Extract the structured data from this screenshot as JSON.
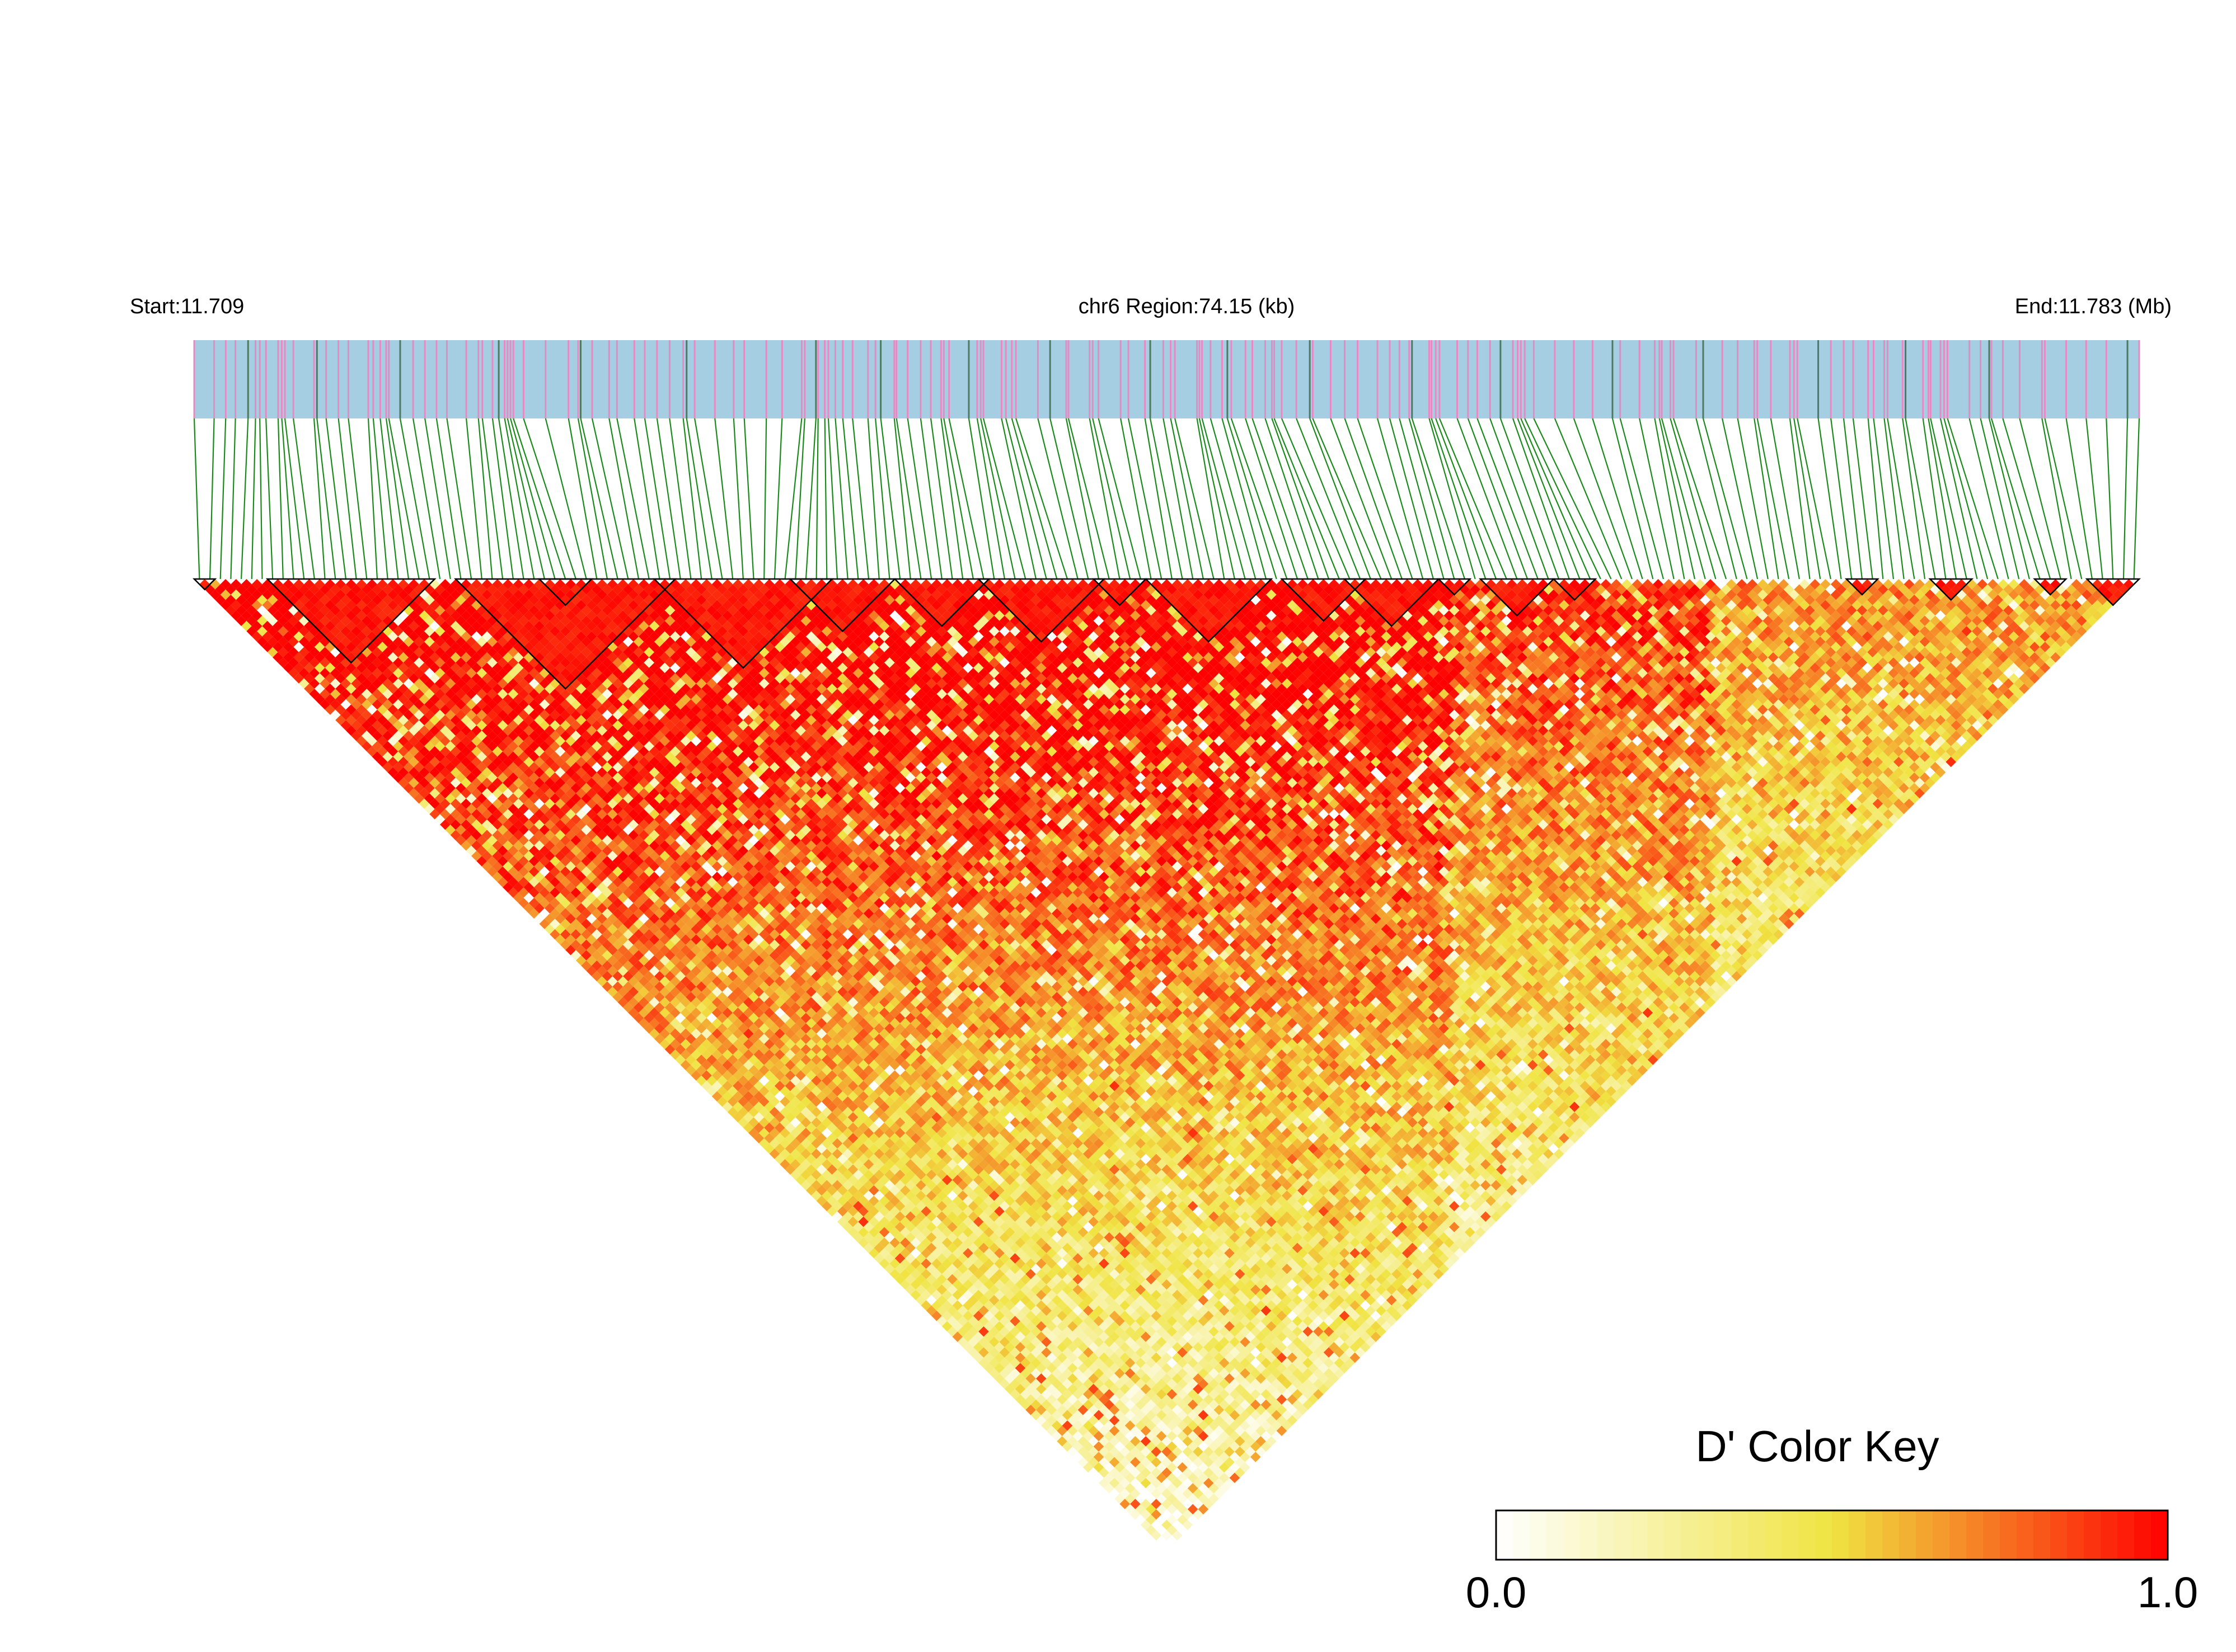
{
  "chart_data": {
    "type": "heatmap",
    "header": {
      "start_label": "Start:11.709",
      "region_label": "chr6 Region:74.15 (kb)",
      "end_label": "End:11.783 (Mb)"
    },
    "region": {
      "chromosome": "chr6",
      "start_mb": 11.709,
      "end_mb": 11.783,
      "length_kb": 74.15
    },
    "snp_count": 186,
    "metric": "D'",
    "value_range": [
      0.0,
      1.0
    ],
    "colors": {
      "gene_track": "#a6cee3",
      "snp_mark": "#e78ac3",
      "snp_mark_dark": "#4d7a60",
      "connector": "#1a8a1a",
      "high": "#ff0000",
      "mid": "#f0e442",
      "low": "#ffffff",
      "block_outline": "#000000"
    },
    "haplotype_blocks": [
      [
        0,
        1
      ],
      [
        7,
        22
      ],
      [
        25,
        45
      ],
      [
        33,
        37
      ],
      [
        44,
        60
      ],
      [
        57,
        66
      ],
      [
        67,
        75
      ],
      [
        75,
        86
      ],
      [
        86,
        90
      ],
      [
        91,
        102
      ],
      [
        104,
        111
      ],
      [
        110,
        118
      ],
      [
        119,
        121
      ],
      [
        123,
        129
      ],
      [
        130,
        133
      ],
      [
        158,
        160
      ],
      [
        166,
        169
      ],
      [
        176,
        178
      ],
      [
        181,
        185
      ]
    ],
    "legend": {
      "title": "D' Color Key",
      "min_label": "0.0",
      "max_label": "1.0"
    }
  }
}
